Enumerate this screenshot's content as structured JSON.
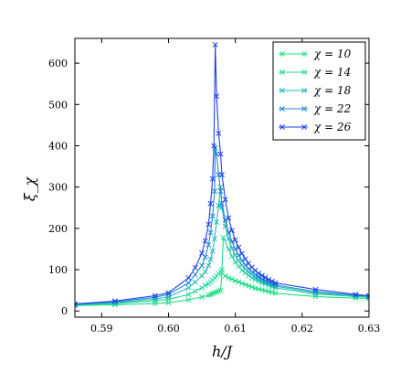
{
  "chart_data": {
    "type": "line",
    "xlabel": "h/J",
    "ylabel": "ξ_χ",
    "xlim": [
      0.586,
      0.63
    ],
    "ylim": [
      -15,
      660
    ],
    "xticks": [
      "0.59",
      "0.60",
      "0.61",
      "0.62",
      "0.63"
    ],
    "yticks": [
      "0",
      "100",
      "200",
      "300",
      "400",
      "500",
      "600"
    ],
    "grid": false,
    "legend_position": "top-right",
    "marker": "x",
    "series": [
      {
        "name": "χ = 10",
        "color": "#1fe085",
        "x": [
          0.586,
          0.592,
          0.598,
          0.6,
          0.603,
          0.605,
          0.606,
          0.6063,
          0.6066,
          0.6069,
          0.6072,
          0.6075,
          0.6078,
          0.608,
          0.6085,
          0.609,
          0.6095,
          0.61,
          0.6105,
          0.611,
          0.6115,
          0.612,
          0.6125,
          0.613,
          0.6135,
          0.614,
          0.6145,
          0.615,
          0.6155,
          0.616,
          0.622,
          0.628,
          0.63
        ],
        "y": [
          13,
          15,
          18,
          20,
          27,
          34,
          38,
          40,
          42,
          44,
          46,
          48,
          50,
          92,
          85,
          80,
          77,
          73,
          70,
          67,
          64,
          61,
          58,
          55,
          53,
          51,
          49,
          47,
          45,
          43,
          35,
          31,
          30
        ]
      },
      {
        "name": "χ = 14",
        "color": "#22d69d",
        "x": [
          0.586,
          0.592,
          0.598,
          0.6,
          0.603,
          0.604,
          0.605,
          0.6055,
          0.606,
          0.6063,
          0.6066,
          0.6069,
          0.6072,
          0.6075,
          0.6078,
          0.608,
          0.6082,
          0.609,
          0.6095,
          0.61,
          0.6105,
          0.611,
          0.6115,
          0.612,
          0.6125,
          0.613,
          0.6135,
          0.614,
          0.6145,
          0.615,
          0.6155,
          0.616,
          0.622,
          0.628,
          0.63
        ],
        "y": [
          14,
          18,
          25,
          28,
          40,
          48,
          56,
          62,
          66,
          70,
          75,
          80,
          85,
          90,
          95,
          100,
          178,
          150,
          132,
          118,
          108,
          98,
          92,
          86,
          80,
          76,
          72,
          68,
          65,
          62,
          59,
          56,
          41,
          35,
          33
        ]
      },
      {
        "name": "χ = 18",
        "color": "#25b8b9",
        "x": [
          0.586,
          0.592,
          0.598,
          0.6,
          0.603,
          0.604,
          0.605,
          0.6055,
          0.606,
          0.6063,
          0.6066,
          0.6069,
          0.6072,
          0.6075,
          0.6078,
          0.608,
          0.6085,
          0.609,
          0.6095,
          0.61,
          0.6105,
          0.611,
          0.6115,
          0.612,
          0.6125,
          0.613,
          0.6135,
          0.614,
          0.6145,
          0.615,
          0.6155,
          0.616,
          0.622,
          0.628,
          0.63
        ],
        "y": [
          15,
          20,
          29,
          34,
          56,
          70,
          85,
          95,
          110,
          125,
          145,
          175,
          215,
          255,
          300,
          250,
          205,
          175,
          152,
          135,
          122,
          111,
          102,
          94,
          88,
          82,
          77,
          73,
          69,
          66,
          63,
          60,
          44,
          37,
          35
        ]
      },
      {
        "name": "χ = 22",
        "color": "#1f88d4",
        "x": [
          0.586,
          0.592,
          0.598,
          0.6,
          0.603,
          0.604,
          0.605,
          0.6055,
          0.606,
          0.6063,
          0.6066,
          0.6069,
          0.607,
          0.6072,
          0.6075,
          0.6078,
          0.608,
          0.6085,
          0.609,
          0.6095,
          0.61,
          0.6105,
          0.611,
          0.6115,
          0.612,
          0.6125,
          0.613,
          0.6135,
          0.614,
          0.6145,
          0.615,
          0.6155,
          0.616,
          0.622,
          0.628,
          0.63
        ],
        "y": [
          16,
          22,
          33,
          40,
          68,
          88,
          110,
          130,
          160,
          190,
          230,
          290,
          395,
          380,
          330,
          290,
          260,
          220,
          190,
          168,
          150,
          135,
          122,
          111,
          102,
          95,
          88,
          83,
          78,
          74,
          70,
          66,
          63,
          47,
          38,
          36
        ]
      },
      {
        "name": "χ = 26",
        "color": "#1f3fe6",
        "x": [
          0.586,
          0.592,
          0.598,
          0.6,
          0.603,
          0.604,
          0.605,
          0.6055,
          0.606,
          0.6063,
          0.6066,
          0.6068,
          0.607,
          0.6072,
          0.6075,
          0.6078,
          0.608,
          0.6085,
          0.609,
          0.6095,
          0.61,
          0.6105,
          0.611,
          0.6115,
          0.612,
          0.6125,
          0.613,
          0.6135,
          0.614,
          0.6145,
          0.615,
          0.6155,
          0.616,
          0.622,
          0.628,
          0.63
        ],
        "y": [
          17,
          24,
          37,
          44,
          80,
          105,
          140,
          170,
          210,
          260,
          320,
          400,
          645,
          520,
          430,
          380,
          330,
          270,
          225,
          195,
          172,
          154,
          139,
          126,
          115,
          106,
          98,
          91,
          86,
          81,
          76,
          72,
          68,
          52,
          40,
          37
        ]
      }
    ]
  }
}
